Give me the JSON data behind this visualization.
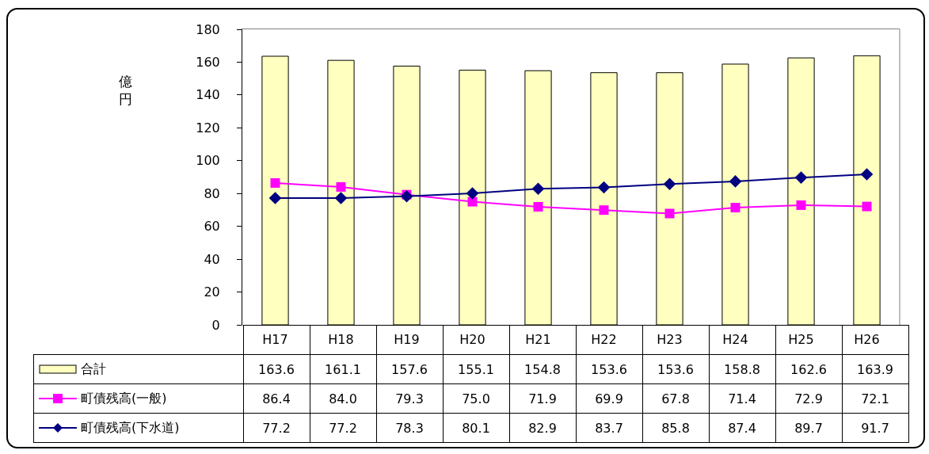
{
  "chart_data": {
    "type": "bar",
    "ylabel": "億円",
    "categories": [
      "H17",
      "H18",
      "H19",
      "H20",
      "H21",
      "H22",
      "H23",
      "H24",
      "H25",
      "H26"
    ],
    "series": [
      {
        "name": "合計",
        "color": "#ffffc0",
        "values": [
          163.6,
          161.1,
          157.6,
          155.1,
          154.8,
          153.6,
          153.6,
          158.8,
          162.6,
          163.9
        ],
        "value_labels": [
          "163.6",
          "161.1",
          "157.6",
          "155.1",
          "154.8",
          "153.6",
          "153.6",
          "158.8",
          "162.6",
          "163.9"
        ]
      },
      {
        "name": "町債残高(一般)",
        "type": "line",
        "color": "#ff00ff",
        "marker": "square",
        "values": [
          86.4,
          84.0,
          79.3,
          75.0,
          71.9,
          69.9,
          67.8,
          71.4,
          72.9,
          72.1
        ],
        "value_labels": [
          "86.4",
          "84.0",
          "79.3",
          "75.0",
          "71.9",
          "69.9",
          "67.8",
          "71.4",
          "72.9",
          "72.1"
        ]
      },
      {
        "name": "町債残高(下水道)",
        "type": "line",
        "color": "#000080",
        "marker": "diamond",
        "values": [
          77.2,
          77.2,
          78.3,
          80.1,
          82.9,
          83.7,
          85.8,
          87.4,
          89.7,
          91.7
        ],
        "value_labels": [
          "77.2",
          "77.2",
          "78.3",
          "80.1",
          "82.9",
          "83.7",
          "85.8",
          "87.4",
          "89.7",
          "91.7"
        ]
      }
    ],
    "ylim": [
      0,
      180
    ],
    "yticks": [
      0,
      20,
      40,
      60,
      80,
      100,
      120,
      140,
      160,
      180
    ],
    "grid": false,
    "legend": "bottom"
  }
}
